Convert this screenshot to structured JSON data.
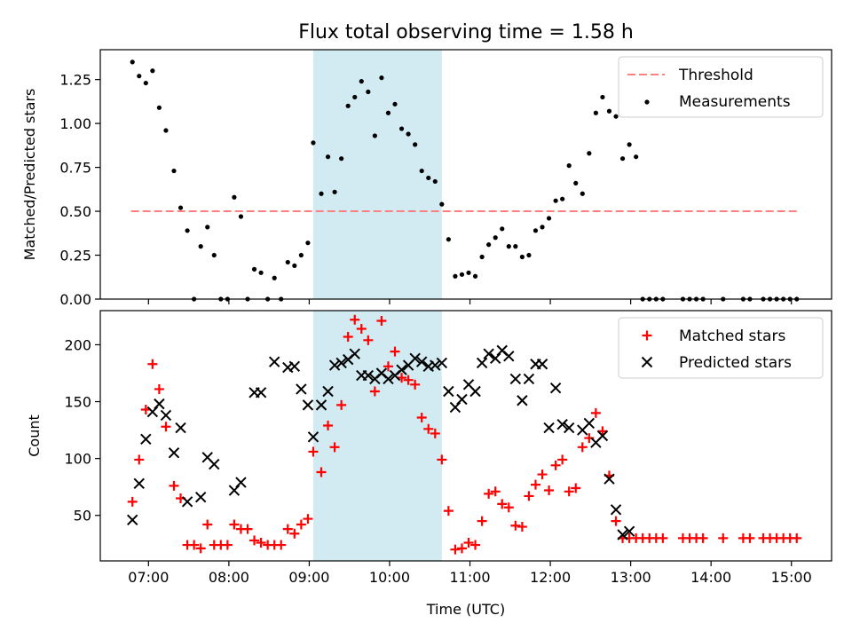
{
  "title": "Flux total observing time = 1.58 h",
  "chart_data": [
    {
      "type": "scatter",
      "title": "Flux total observing time = 1.58 h",
      "xlabel": "",
      "ylabel": "Matched/Predicted stars",
      "xlim": [
        "06:24",
        "15:30"
      ],
      "ylim": [
        0,
        1.42
      ],
      "yticks": [
        "0.00",
        "0.25",
        "0.50",
        "0.75",
        "1.00",
        "1.25"
      ],
      "highlight_span": [
        "09:03",
        "10:39"
      ],
      "highlight_color": "#add8e6",
      "legend_position": "upper right",
      "threshold": {
        "name": "Threshold",
        "value": 0.5,
        "x_range": [
          "06:47",
          "15:05"
        ],
        "color": "#ff8080",
        "style": "dashed"
      },
      "series": [
        {
          "name": "Measurements",
          "color": "#000000",
          "marker": "dot",
          "points": [
            [
              "06:48",
              1.35
            ],
            [
              "06:53",
              1.27
            ],
            [
              "06:58",
              1.23
            ],
            [
              "07:03",
              1.3
            ],
            [
              "07:08",
              1.09
            ],
            [
              "07:13",
              0.96
            ],
            [
              "07:19",
              0.73
            ],
            [
              "07:24",
              0.52
            ],
            [
              "07:29",
              0.39
            ],
            [
              "07:34",
              0.0
            ],
            [
              "07:39",
              0.3
            ],
            [
              "07:44",
              0.41
            ],
            [
              "07:49",
              0.25
            ],
            [
              "07:54",
              0.0
            ],
            [
              "07:59",
              0.0
            ],
            [
              "08:04",
              0.58
            ],
            [
              "08:09",
              0.47
            ],
            [
              "08:14",
              0.0
            ],
            [
              "08:19",
              0.17
            ],
            [
              "08:24",
              0.15
            ],
            [
              "08:29",
              0.0
            ],
            [
              "08:34",
              0.12
            ],
            [
              "08:39",
              0.0
            ],
            [
              "08:44",
              0.21
            ],
            [
              "08:49",
              0.19
            ],
            [
              "08:54",
              0.25
            ],
            [
              "08:59",
              0.32
            ],
            [
              "09:03",
              0.89
            ],
            [
              "09:09",
              0.6
            ],
            [
              "09:14",
              0.81
            ],
            [
              "09:19",
              0.61
            ],
            [
              "09:24",
              0.8
            ],
            [
              "09:29",
              1.1
            ],
            [
              "09:34",
              1.15
            ],
            [
              "09:39",
              1.24
            ],
            [
              "09:44",
              1.18
            ],
            [
              "09:49",
              0.93
            ],
            [
              "09:54",
              1.26
            ],
            [
              "09:59",
              1.06
            ],
            [
              "10:04",
              1.11
            ],
            [
              "10:09",
              0.97
            ],
            [
              "10:14",
              0.94
            ],
            [
              "10:19",
              0.88
            ],
            [
              "10:24",
              0.73
            ],
            [
              "10:29",
              0.69
            ],
            [
              "10:34",
              0.67
            ],
            [
              "10:39",
              0.54
            ],
            [
              "10:44",
              0.34
            ],
            [
              "10:49",
              0.13
            ],
            [
              "10:54",
              0.14
            ],
            [
              "10:59",
              0.15
            ],
            [
              "11:04",
              0.13
            ],
            [
              "11:09",
              0.24
            ],
            [
              "11:14",
              0.31
            ],
            [
              "11:19",
              0.35
            ],
            [
              "11:24",
              0.4
            ],
            [
              "11:29",
              0.3
            ],
            [
              "11:34",
              0.3
            ],
            [
              "11:39",
              0.24
            ],
            [
              "11:44",
              0.25
            ],
            [
              "11:49",
              0.39
            ],
            [
              "11:54",
              0.41
            ],
            [
              "11:59",
              0.46
            ],
            [
              "12:04",
              0.56
            ],
            [
              "12:09",
              0.57
            ],
            [
              "12:14",
              0.76
            ],
            [
              "12:19",
              0.66
            ],
            [
              "12:24",
              0.6
            ],
            [
              "12:29",
              0.83
            ],
            [
              "12:34",
              1.06
            ],
            [
              "12:39",
              1.15
            ],
            [
              "12:44",
              1.07
            ],
            [
              "12:49",
              1.04
            ],
            [
              "12:54",
              0.8
            ],
            [
              "12:59",
              0.88
            ],
            [
              "13:04",
              0.81
            ],
            [
              "13:09",
              0.0
            ],
            [
              "13:14",
              0.0
            ],
            [
              "13:19",
              0.0
            ],
            [
              "13:24",
              0.0
            ],
            [
              "13:39",
              0.0
            ],
            [
              "13:44",
              0.0
            ],
            [
              "13:49",
              0.0
            ],
            [
              "13:54",
              0.0
            ],
            [
              "14:09",
              0.0
            ],
            [
              "14:24",
              0.0
            ],
            [
              "14:29",
              0.0
            ],
            [
              "14:39",
              0.0
            ],
            [
              "14:44",
              0.0
            ],
            [
              "14:49",
              0.0
            ],
            [
              "14:54",
              0.0
            ],
            [
              "14:59",
              0.0
            ],
            [
              "15:04",
              0.0
            ]
          ]
        }
      ]
    },
    {
      "type": "scatter",
      "title": "",
      "xlabel": "Time (UTC)",
      "ylabel": "Count",
      "xlim": [
        "06:24",
        "15:30"
      ],
      "ylim": [
        10,
        230
      ],
      "yticks": [
        "50",
        "100",
        "150",
        "200"
      ],
      "xticks": [
        "07:00",
        "08:00",
        "09:00",
        "10:00",
        "11:00",
        "12:00",
        "13:00",
        "14:00",
        "15:00"
      ],
      "highlight_span": [
        "09:03",
        "10:39"
      ],
      "highlight_color": "#add8e6",
      "legend_position": "upper right",
      "series": [
        {
          "name": "Matched stars",
          "color": "#ff0000",
          "marker": "plus",
          "points": [
            [
              "06:48",
              62
            ],
            [
              "06:53",
              99
            ],
            [
              "06:58",
              143
            ],
            [
              "07:03",
              183
            ],
            [
              "07:08",
              161
            ],
            [
              "07:13",
              128
            ],
            [
              "07:19",
              76
            ],
            [
              "07:24",
              65
            ],
            [
              "07:29",
              24
            ],
            [
              "07:34",
              24
            ],
            [
              "07:39",
              21
            ],
            [
              "07:44",
              42
            ],
            [
              "07:49",
              24
            ],
            [
              "07:54",
              24
            ],
            [
              "07:59",
              24
            ],
            [
              "08:04",
              42
            ],
            [
              "08:09",
              38
            ],
            [
              "08:14",
              38
            ],
            [
              "08:19",
              28
            ],
            [
              "08:24",
              26
            ],
            [
              "08:29",
              24
            ],
            [
              "08:34",
              24
            ],
            [
              "08:39",
              24
            ],
            [
              "08:44",
              38
            ],
            [
              "08:49",
              34
            ],
            [
              "08:54",
              42
            ],
            [
              "08:59",
              47
            ],
            [
              "09:03",
              106
            ],
            [
              "09:09",
              88
            ],
            [
              "09:14",
              129
            ],
            [
              "09:19",
              110
            ],
            [
              "09:24",
              147
            ],
            [
              "09:29",
              207
            ],
            [
              "09:34",
              222
            ],
            [
              "09:39",
              214
            ],
            [
              "09:44",
              204
            ],
            [
              "09:49",
              159
            ],
            [
              "09:54",
              221
            ],
            [
              "09:59",
              181
            ],
            [
              "10:04",
              194
            ],
            [
              "10:09",
              171
            ],
            [
              "10:14",
              169
            ],
            [
              "10:19",
              165
            ],
            [
              "10:24",
              136
            ],
            [
              "10:29",
              126
            ],
            [
              "10:34",
              122
            ],
            [
              "10:39",
              99
            ],
            [
              "10:44",
              54
            ],
            [
              "10:49",
              20
            ],
            [
              "10:54",
              21
            ],
            [
              "10:59",
              26
            ],
            [
              "11:04",
              24
            ],
            [
              "11:09",
              45
            ],
            [
              "11:14",
              69
            ],
            [
              "11:19",
              71
            ],
            [
              "11:24",
              60
            ],
            [
              "11:29",
              57
            ],
            [
              "11:34",
              41
            ],
            [
              "11:39",
              40
            ],
            [
              "11:44",
              67
            ],
            [
              "11:49",
              77
            ],
            [
              "11:54",
              86
            ],
            [
              "11:59",
              72
            ],
            [
              "12:04",
              94
            ],
            [
              "12:09",
              99
            ],
            [
              "12:14",
              71
            ],
            [
              "12:19",
              74
            ],
            [
              "12:24",
              110
            ],
            [
              "12:29",
              118
            ],
            [
              "12:34",
              140
            ],
            [
              "12:39",
              124
            ],
            [
              "12:44",
              85
            ],
            [
              "12:49",
              45
            ],
            [
              "12:54",
              30
            ],
            [
              "12:59",
              30
            ],
            [
              "13:04",
              30
            ],
            [
              "13:09",
              30
            ],
            [
              "13:14",
              30
            ],
            [
              "13:19",
              30
            ],
            [
              "13:24",
              30
            ],
            [
              "13:39",
              30
            ],
            [
              "13:44",
              30
            ],
            [
              "13:49",
              30
            ],
            [
              "13:54",
              30
            ],
            [
              "14:09",
              30
            ],
            [
              "14:24",
              30
            ],
            [
              "14:29",
              30
            ],
            [
              "14:39",
              30
            ],
            [
              "14:44",
              30
            ],
            [
              "14:49",
              30
            ],
            [
              "14:54",
              30
            ],
            [
              "14:59",
              30
            ],
            [
              "15:04",
              30
            ]
          ]
        },
        {
          "name": "Predicted stars",
          "color": "#000000",
          "marker": "x",
          "points": [
            [
              "06:48",
              46
            ],
            [
              "06:53",
              78
            ],
            [
              "06:58",
              117
            ],
            [
              "07:03",
              141
            ],
            [
              "07:08",
              148
            ],
            [
              "07:13",
              138
            ],
            [
              "07:19",
              105
            ],
            [
              "07:24",
              127
            ],
            [
              "07:29",
              62
            ],
            [
              "07:39",
              66
            ],
            [
              "07:44",
              101
            ],
            [
              "07:49",
              95
            ],
            [
              "08:04",
              72
            ],
            [
              "08:09",
              79
            ],
            [
              "08:19",
              158
            ],
            [
              "08:24",
              158
            ],
            [
              "08:34",
              185
            ],
            [
              "08:44",
              180
            ],
            [
              "08:49",
              181
            ],
            [
              "08:54",
              161
            ],
            [
              "08:59",
              147
            ],
            [
              "09:03",
              119
            ],
            [
              "09:09",
              147
            ],
            [
              "09:14",
              159
            ],
            [
              "09:19",
              182
            ],
            [
              "09:24",
              184
            ],
            [
              "09:29",
              187
            ],
            [
              "09:34",
              192
            ],
            [
              "09:39",
              173
            ],
            [
              "09:44",
              173
            ],
            [
              "09:49",
              170
            ],
            [
              "09:54",
              175
            ],
            [
              "09:59",
              170
            ],
            [
              "10:04",
              173
            ],
            [
              "10:09",
              178
            ],
            [
              "10:14",
              182
            ],
            [
              "10:19",
              188
            ],
            [
              "10:24",
              185
            ],
            [
              "10:29",
              181
            ],
            [
              "10:34",
              182
            ],
            [
              "10:39",
              184
            ],
            [
              "10:44",
              159
            ],
            [
              "10:49",
              145
            ],
            [
              "10:54",
              152
            ],
            [
              "10:59",
              165
            ],
            [
              "11:04",
              159
            ],
            [
              "11:09",
              184
            ],
            [
              "11:14",
              192
            ],
            [
              "11:19",
              188
            ],
            [
              "11:24",
              195
            ],
            [
              "11:29",
              190
            ],
            [
              "11:34",
              170
            ],
            [
              "11:39",
              151
            ],
            [
              "11:44",
              170
            ],
            [
              "11:49",
              183
            ],
            [
              "11:54",
              183
            ],
            [
              "11:59",
              127
            ],
            [
              "12:04",
              162
            ],
            [
              "12:09",
              130
            ],
            [
              "12:14",
              127
            ],
            [
              "12:24",
              125
            ],
            [
              "12:29",
              131
            ],
            [
              "12:34",
              114
            ],
            [
              "12:39",
              120
            ],
            [
              "12:44",
              82
            ],
            [
              "12:49",
              55
            ],
            [
              "12:54",
              33
            ],
            [
              "12:59",
              36
            ]
          ]
        }
      ]
    }
  ]
}
